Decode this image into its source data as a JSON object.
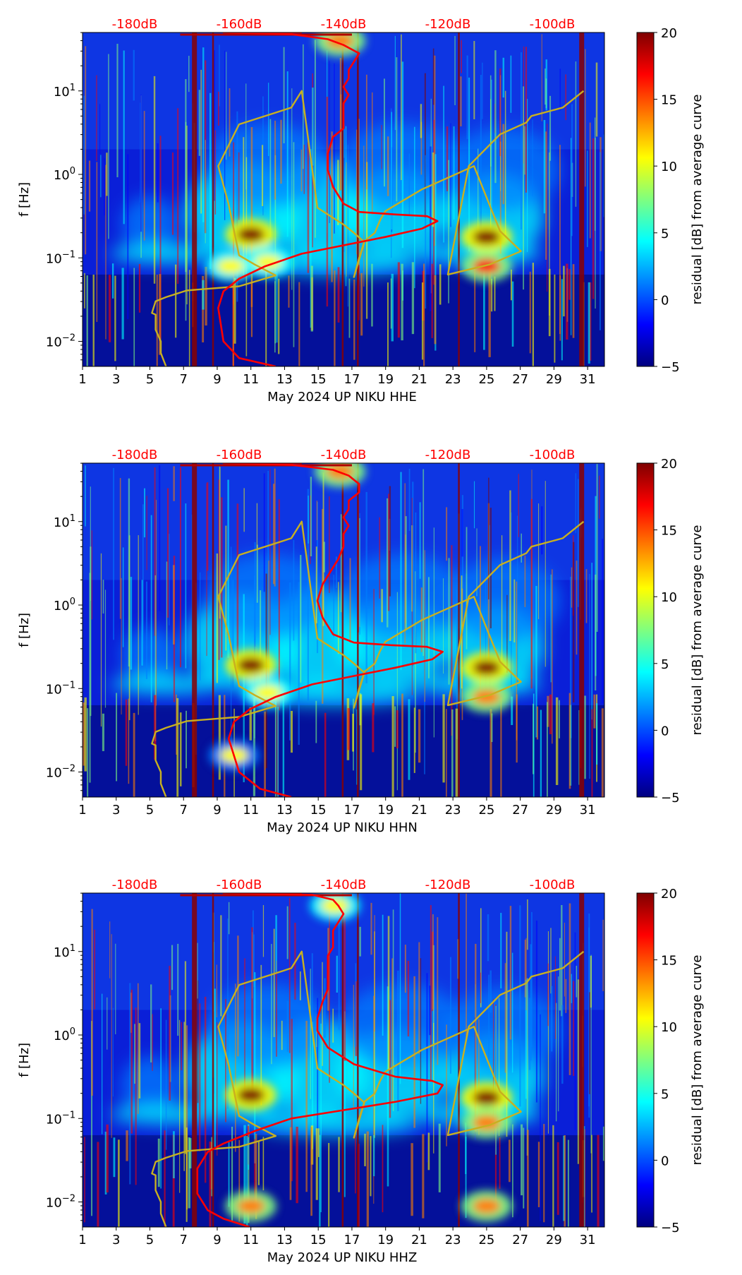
{
  "figure": {
    "colorbar_label": "residual [dB] from average curve",
    "colorbar_ticks": [
      "20",
      "15",
      "10",
      "5",
      "0",
      "−5"
    ],
    "colorbar_values": [
      20,
      15,
      10,
      5,
      0,
      -5
    ],
    "colormap": [
      "#00007f",
      "#0000ff",
      "#007fff",
      "#00ffff",
      "#7fff7f",
      "#ffff00",
      "#ff7f00",
      "#ff0000",
      "#7f0000"
    ]
  },
  "chart_data": [
    {
      "type": "heatmap",
      "xlabel": "May 2024 UP NIKU  HHE",
      "ylabel": "f [Hz]",
      "x_tick_labels": [
        "1",
        "3",
        "5",
        "7",
        "9",
        "11",
        "13",
        "15",
        "17",
        "19",
        "21",
        "23",
        "25",
        "27",
        "29",
        "31"
      ],
      "y_tick_labels": [
        "10−2",
        "10−1",
        "100",
        "101"
      ],
      "top_axis_labels": [
        "-180dB",
        "-160dB",
        "-140dB",
        "-120dB",
        "-100dB"
      ],
      "top_axis_color": "#ff0000",
      "xlim": [
        1,
        32
      ],
      "ylim_log10": [
        -2.3,
        1.7
      ],
      "colorbar_range": [
        -5,
        20
      ],
      "hot_spots": [
        {
          "day": 11.0,
          "log10_f": -0.72,
          "level": 20
        },
        {
          "day": 25.0,
          "log10_f": -0.75,
          "level": 20
        },
        {
          "day": 25.0,
          "log10_f": -1.1,
          "level": 17
        },
        {
          "day": 12.0,
          "log10_f": -1.05,
          "level": 12
        },
        {
          "day": 9.8,
          "log10_f": -1.1,
          "level": 12
        },
        {
          "day": 16.3,
          "log10_f": 1.6,
          "level": 14
        }
      ],
      "series": [
        {
          "name": "model low/high curve",
          "color": "#c8b020",
          "x_dB": [
            -174,
            -175,
            -175,
            -176,
            -176,
            -176.7,
            -176,
            -174,
            -170,
            -160,
            -153,
            -157,
            -160,
            -162,
            -164,
            -160,
            -150,
            -148,
            -145,
            -140,
            -138,
            -136,
            -138,
            -137,
            -136,
            -134,
            -133,
            -132,
            -125,
            -115,
            -110,
            -106,
            -112,
            -120,
            -116,
            -110,
            -105,
            -104,
            -98,
            -94
          ],
          "log10_f": [
            -2.3,
            -2.14,
            -2.0,
            -1.86,
            -1.68,
            -1.66,
            -1.52,
            -1.47,
            -1.39,
            -1.34,
            -1.21,
            -1.08,
            -0.97,
            -0.36,
            0.1,
            0.6,
            0.8,
            1.0,
            -0.4,
            -0.6,
            -0.7,
            -0.81,
            -1.23,
            -1.0,
            -0.8,
            -0.7,
            -0.55,
            -0.44,
            -0.18,
            0.1,
            -0.68,
            -0.92,
            -1.08,
            -1.2,
            0.1,
            0.48,
            0.62,
            0.7,
            0.8,
            1.0
          ]
        },
        {
          "name": "median PSD",
          "color": "#ff0000",
          "x_dB": [
            -153,
            -160,
            -163,
            -164,
            -163,
            -160,
            -155,
            -148,
            -140,
            -132,
            -125,
            -122,
            -124,
            -130,
            -137,
            -140,
            -142,
            -143,
            -143,
            -142,
            -140,
            -140,
            -140,
            -139,
            -140,
            -139,
            -139,
            -138,
            -137,
            -140,
            -143,
            -150,
            -163,
            -160,
            -150,
            -148
          ],
          "log10_f": [
            -2.3,
            -2.2,
            -2.0,
            -1.6,
            -1.4,
            -1.25,
            -1.1,
            -0.95,
            -0.85,
            -0.75,
            -0.65,
            -0.56,
            -0.5,
            -0.48,
            -0.45,
            -0.35,
            -0.15,
            0.05,
            0.25,
            0.45,
            0.55,
            0.7,
            0.85,
            0.95,
            1.05,
            1.15,
            1.25,
            1.35,
            1.45,
            1.55,
            1.62,
            1.68,
            1.7,
            1.7,
            1.7,
            1.7
          ]
        }
      ]
    },
    {
      "type": "heatmap",
      "xlabel": "May 2024 UP NIKU  HHN",
      "ylabel": "f [Hz]",
      "x_tick_labels": [
        "1",
        "3",
        "5",
        "7",
        "9",
        "11",
        "13",
        "15",
        "17",
        "19",
        "21",
        "23",
        "25",
        "27",
        "29",
        "31"
      ],
      "y_tick_labels": [
        "10−2",
        "10−1",
        "100",
        "101"
      ],
      "top_axis_labels": [
        "-180dB",
        "-160dB",
        "-140dB",
        "-120dB",
        "-100dB"
      ],
      "top_axis_color": "#ff0000",
      "xlim": [
        1,
        32
      ],
      "ylim_log10": [
        -2.3,
        1.7
      ],
      "colorbar_range": [
        -5,
        20
      ],
      "hot_spots": [
        {
          "day": 11.0,
          "log10_f": -0.72,
          "level": 20
        },
        {
          "day": 25.0,
          "log10_f": -0.75,
          "level": 20
        },
        {
          "day": 25.0,
          "log10_f": -1.1,
          "level": 15
        },
        {
          "day": 12.0,
          "log10_f": -1.05,
          "level": 12
        },
        {
          "day": 10.0,
          "log10_f": -1.8,
          "level": 10
        },
        {
          "day": 16.3,
          "log10_f": 1.6,
          "level": 14
        }
      ],
      "series": [
        {
          "name": "model low/high curve",
          "color": "#c8b020",
          "x_dB": [
            -174,
            -175,
            -175,
            -176,
            -176,
            -176.7,
            -176,
            -174,
            -170,
            -160,
            -153,
            -157,
            -160,
            -162,
            -164,
            -160,
            -150,
            -148,
            -145,
            -140,
            -138,
            -136,
            -138,
            -137,
            -136,
            -134,
            -133,
            -132,
            -125,
            -115,
            -110,
            -106,
            -112,
            -120,
            -116,
            -110,
            -105,
            -104,
            -98,
            -94
          ],
          "log10_f": [
            -2.3,
            -2.14,
            -2.0,
            -1.86,
            -1.68,
            -1.66,
            -1.52,
            -1.47,
            -1.39,
            -1.34,
            -1.21,
            -1.08,
            -0.97,
            -0.36,
            0.1,
            0.6,
            0.8,
            1.0,
            -0.4,
            -0.6,
            -0.7,
            -0.81,
            -1.23,
            -1.0,
            -0.8,
            -0.7,
            -0.55,
            -0.44,
            -0.18,
            0.1,
            -0.68,
            -0.92,
            -1.08,
            -1.2,
            0.1,
            0.48,
            0.62,
            0.7,
            0.8,
            1.0
          ]
        },
        {
          "name": "median PSD",
          "color": "#ff0000",
          "x_dB": [
            -150,
            -156,
            -160,
            -162,
            -161,
            -158,
            -153,
            -146,
            -138,
            -130,
            -123,
            -121,
            -124,
            -131,
            -138,
            -142,
            -144,
            -145,
            -144,
            -142,
            -141,
            -140,
            -140,
            -139,
            -140,
            -139,
            -139,
            -137,
            -137,
            -139,
            -142,
            -150,
            -163,
            -160,
            -150,
            -148
          ],
          "log10_f": [
            -2.3,
            -2.2,
            -2.0,
            -1.6,
            -1.4,
            -1.25,
            -1.1,
            -0.95,
            -0.85,
            -0.75,
            -0.65,
            -0.56,
            -0.5,
            -0.48,
            -0.45,
            -0.35,
            -0.15,
            0.05,
            0.25,
            0.45,
            0.55,
            0.7,
            0.85,
            0.95,
            1.05,
            1.15,
            1.25,
            1.35,
            1.45,
            1.55,
            1.62,
            1.68,
            1.7,
            1.7,
            1.7,
            1.7
          ]
        }
      ]
    },
    {
      "type": "heatmap",
      "xlabel": "May 2024 UP NIKU  HHZ",
      "ylabel": "f [Hz]",
      "x_tick_labels": [
        "1",
        "3",
        "5",
        "7",
        "9",
        "11",
        "13",
        "15",
        "17",
        "19",
        "21",
        "23",
        "25",
        "27",
        "29",
        "31"
      ],
      "y_tick_labels": [
        "10−2",
        "10−1",
        "100",
        "101"
      ],
      "top_axis_labels": [
        "-180dB",
        "-160dB",
        "-140dB",
        "-120dB",
        "-100dB"
      ],
      "top_axis_color": "#ff0000",
      "xlim": [
        1,
        32
      ],
      "ylim_log10": [
        -2.3,
        1.7
      ],
      "colorbar_range": [
        -5,
        20
      ],
      "hot_spots": [
        {
          "day": 11.0,
          "log10_f": -0.72,
          "level": 20
        },
        {
          "day": 25.0,
          "log10_f": -0.75,
          "level": 20
        },
        {
          "day": 25.0,
          "log10_f": -1.05,
          "level": 15
        },
        {
          "day": 11.0,
          "log10_f": -2.05,
          "level": 14
        },
        {
          "day": 25.0,
          "log10_f": -2.05,
          "level": 14
        },
        {
          "day": 16.0,
          "log10_f": 1.55,
          "level": 12
        }
      ],
      "series": [
        {
          "name": "model low/high curve",
          "color": "#c8b020",
          "x_dB": [
            -174,
            -175,
            -175,
            -176,
            -176,
            -176.7,
            -176,
            -174,
            -170,
            -160,
            -153,
            -157,
            -160,
            -162,
            -164,
            -160,
            -150,
            -148,
            -145,
            -140,
            -138,
            -136,
            -138,
            -137,
            -136,
            -134,
            -133,
            -132,
            -125,
            -115,
            -110,
            -106,
            -112,
            -120,
            -116,
            -110,
            -105,
            -104,
            -98,
            -94
          ],
          "log10_f": [
            -2.3,
            -2.14,
            -2.0,
            -1.86,
            -1.68,
            -1.66,
            -1.52,
            -1.47,
            -1.39,
            -1.34,
            -1.21,
            -1.08,
            -0.97,
            -0.36,
            0.1,
            0.6,
            0.8,
            1.0,
            -0.4,
            -0.6,
            -0.7,
            -0.81,
            -1.23,
            -1.0,
            -0.8,
            -0.7,
            -0.55,
            -0.44,
            -0.18,
            0.1,
            -0.68,
            -0.92,
            -1.08,
            -1.2,
            0.1,
            0.48,
            0.62,
            0.7,
            0.8,
            1.0
          ]
        },
        {
          "name": "median PSD",
          "color": "#ff0000",
          "x_dB": [
            -158,
            -163,
            -166,
            -168,
            -168,
            -166,
            -163,
            -157,
            -150,
            -140,
            -130,
            -122,
            -121,
            -123,
            -130,
            -138,
            -143,
            -145,
            -145,
            -144,
            -143,
            -143,
            -143,
            -143,
            -142,
            -142,
            -142,
            -141,
            -140,
            -141,
            -142,
            -146,
            -163,
            -160,
            -150,
            -148
          ],
          "log10_f": [
            -2.3,
            -2.2,
            -2.1,
            -1.9,
            -1.6,
            -1.4,
            -1.3,
            -1.15,
            -1.0,
            -0.9,
            -0.8,
            -0.7,
            -0.6,
            -0.55,
            -0.5,
            -0.35,
            -0.15,
            0.05,
            0.2,
            0.4,
            0.55,
            0.7,
            0.85,
            0.95,
            1.05,
            1.15,
            1.25,
            1.35,
            1.45,
            1.55,
            1.62,
            1.68,
            1.7,
            1.7,
            1.7,
            1.7
          ]
        }
      ]
    }
  ]
}
